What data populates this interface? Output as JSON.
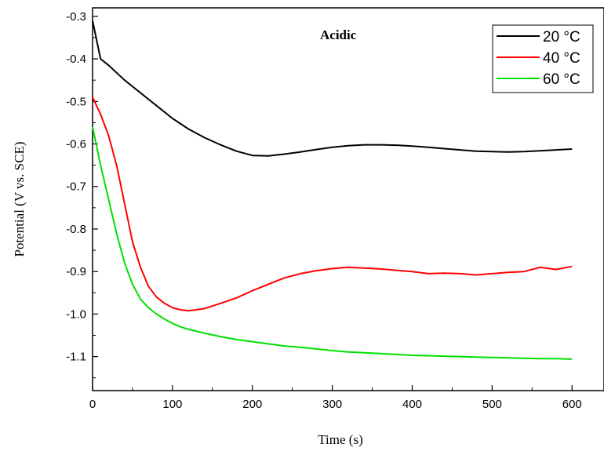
{
  "chart_data": {
    "type": "line",
    "title": "",
    "annotation": "Acidic",
    "xlabel": "Time (s)",
    "ylabel": "Potential (V vs. SCE)",
    "xlim": [
      0,
      640
    ],
    "ylim": [
      -1.18,
      -0.28
    ],
    "x_ticks": [
      0,
      100,
      200,
      300,
      400,
      500,
      600
    ],
    "x_tick_labels": [
      "0",
      "100",
      "200",
      "300",
      "400",
      "500",
      "600"
    ],
    "y_ticks": [
      -0.3,
      -0.4,
      -0.5,
      -0.6,
      -0.7,
      -0.8,
      -0.9,
      -1.0,
      -1.1
    ],
    "y_tick_labels": [
      "-0.3",
      "-0.4",
      "-0.5",
      "-0.6",
      "-0.7",
      "-0.8",
      "-0.9",
      "-1.0",
      "-1.1"
    ],
    "grid": false,
    "legend_position": "top-right",
    "series": [
      {
        "name": "20 °C",
        "color": "#000000",
        "x": [
          0,
          10,
          20,
          40,
          60,
          80,
          100,
          120,
          140,
          160,
          180,
          200,
          220,
          240,
          260,
          280,
          300,
          320,
          340,
          360,
          380,
          400,
          420,
          440,
          460,
          480,
          500,
          520,
          540,
          560,
          580,
          600
        ],
        "y": [
          -0.31,
          -0.4,
          -0.415,
          -0.45,
          -0.48,
          -0.51,
          -0.54,
          -0.565,
          -0.585,
          -0.602,
          -0.617,
          -0.627,
          -0.628,
          -0.624,
          -0.619,
          -0.613,
          -0.608,
          -0.604,
          -0.602,
          -0.602,
          -0.603,
          -0.605,
          -0.608,
          -0.611,
          -0.614,
          -0.617,
          -0.618,
          -0.619,
          -0.618,
          -0.616,
          -0.614,
          -0.612
        ]
      },
      {
        "name": "40 °C",
        "color": "#ff0000",
        "x": [
          0,
          10,
          20,
          30,
          40,
          50,
          60,
          70,
          80,
          90,
          100,
          110,
          120,
          130,
          140,
          160,
          180,
          200,
          220,
          240,
          260,
          280,
          300,
          320,
          340,
          360,
          380,
          400,
          420,
          440,
          460,
          480,
          500,
          520,
          540,
          560,
          580,
          600
        ],
        "y": [
          -0.49,
          -0.53,
          -0.58,
          -0.65,
          -0.74,
          -0.83,
          -0.89,
          -0.935,
          -0.96,
          -0.975,
          -0.985,
          -0.99,
          -0.992,
          -0.99,
          -0.987,
          -0.975,
          -0.962,
          -0.945,
          -0.93,
          -0.915,
          -0.905,
          -0.898,
          -0.893,
          -0.89,
          -0.892,
          -0.894,
          -0.897,
          -0.9,
          -0.905,
          -0.904,
          -0.905,
          -0.908,
          -0.905,
          -0.902,
          -0.9,
          -0.89,
          -0.895,
          -0.888
        ]
      },
      {
        "name": "60 °C",
        "color": "#00e000",
        "x": [
          0,
          10,
          20,
          30,
          40,
          50,
          60,
          70,
          80,
          90,
          100,
          110,
          120,
          140,
          160,
          180,
          200,
          220,
          240,
          260,
          280,
          300,
          320,
          340,
          360,
          380,
          400,
          420,
          440,
          460,
          480,
          500,
          520,
          540,
          560,
          580,
          600
        ],
        "y": [
          -0.56,
          -0.65,
          -0.73,
          -0.81,
          -0.88,
          -0.93,
          -0.965,
          -0.985,
          -1.0,
          -1.012,
          -1.022,
          -1.03,
          -1.036,
          -1.045,
          -1.053,
          -1.06,
          -1.065,
          -1.07,
          -1.075,
          -1.078,
          -1.082,
          -1.086,
          -1.089,
          -1.091,
          -1.093,
          -1.095,
          -1.097,
          -1.098,
          -1.099,
          -1.1,
          -1.101,
          -1.102,
          -1.103,
          -1.104,
          -1.105,
          -1.105,
          -1.106
        ]
      }
    ]
  }
}
